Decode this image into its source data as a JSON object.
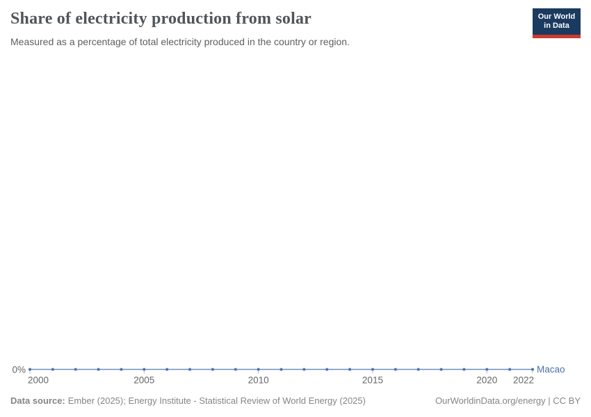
{
  "logo": {
    "line1": "Our World",
    "line2": "in Data",
    "bg_color": "#1b3a5f",
    "accent_color": "#cf3a2f"
  },
  "chart_data": {
    "type": "line",
    "title": "Share of electricity production from solar",
    "subtitle": "Measured as a percentage of total electricity produced in the country or region.",
    "x": [
      2000,
      2001,
      2002,
      2003,
      2004,
      2005,
      2006,
      2007,
      2008,
      2009,
      2010,
      2011,
      2012,
      2013,
      2014,
      2015,
      2016,
      2017,
      2018,
      2019,
      2020,
      2021,
      2022
    ],
    "series": [
      {
        "name": "Macao",
        "color": "#4d6fad",
        "line_color": "#6f8cc0",
        "unit": "%",
        "values": [
          0,
          0,
          0,
          0,
          0,
          0,
          0,
          0,
          0,
          0,
          0,
          0,
          0,
          0,
          0,
          0,
          0,
          0,
          0,
          0,
          0,
          0,
          0
        ]
      }
    ],
    "x_ticks": [
      2000,
      2005,
      2010,
      2015,
      2020,
      2022
    ],
    "y_ticks": [
      {
        "value": 0,
        "label": "0%"
      }
    ],
    "xlim": [
      2000,
      2022
    ],
    "ylim": [
      0,
      0
    ],
    "grid": false,
    "legend_position": "inline-end-label",
    "axis_text_color": "#666666",
    "tick_mark_color": "#b6bdc9"
  },
  "footer": {
    "source_label": "Data source:",
    "source_text": "Ember (2025); Energy Institute - Statistical Review of World Energy (2025)",
    "right_text": "OurWorldinData.org/energy | CC BY"
  }
}
